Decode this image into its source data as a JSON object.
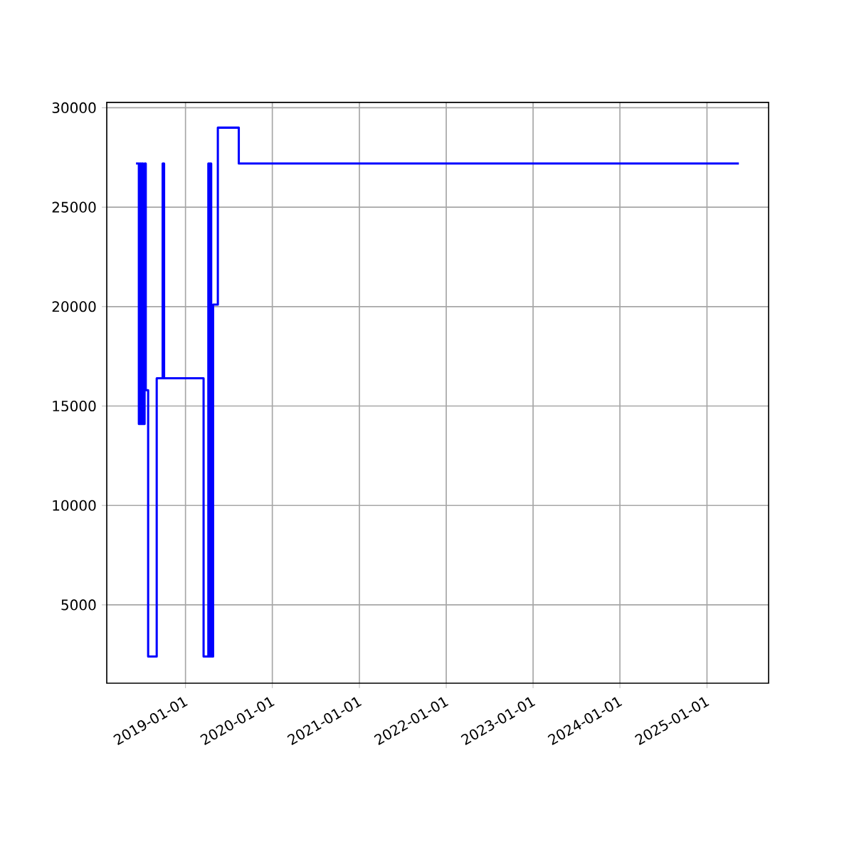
{
  "chart_data": {
    "type": "step",
    "x": [
      "2018-06-07",
      "2018-06-19",
      "2018-06-23",
      "2018-06-27",
      "2018-07-01",
      "2018-07-07",
      "2018-07-13",
      "2018-07-18",
      "2018-07-28",
      "2018-09-02",
      "2018-09-27",
      "2018-10-03",
      "2019-03-18",
      "2019-04-07",
      "2019-04-11",
      "2019-04-15",
      "2019-04-19",
      "2019-04-27",
      "2019-05-17",
      "2019-08-13",
      "2025-05-15"
    ],
    "values": [
      27200,
      14100,
      27200,
      14100,
      27200,
      14100,
      27200,
      15800,
      2400,
      16400,
      27200,
      16400,
      2400,
      27200,
      2400,
      27200,
      2400,
      20100,
      29000,
      27200,
      27200
    ],
    "color": "#0000ff",
    "xlim": [
      "2018-02-04",
      "2025-09-17"
    ],
    "ylim": [
      1060,
      30270
    ],
    "xticks": [
      "2019-01-01",
      "2020-01-01",
      "2021-01-01",
      "2022-01-01",
      "2023-01-01",
      "2024-01-01",
      "2025-01-01"
    ],
    "yticks": [
      5000,
      10000,
      15000,
      20000,
      25000,
      30000
    ],
    "grid": true,
    "line_style": "solid",
    "marker": "none"
  }
}
